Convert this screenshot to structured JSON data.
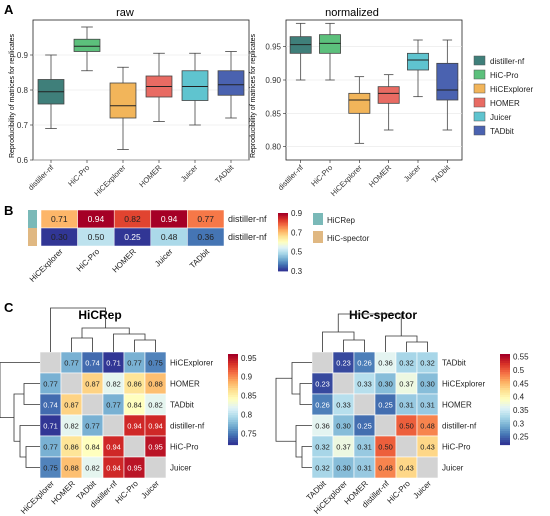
{
  "panel_labels": {
    "a": "A",
    "b": "B",
    "c": "C"
  },
  "chart_data": [
    {
      "type": "boxplot",
      "title": "raw",
      "ylabel": "Reproducibility of matrices for replicates",
      "ylim": [
        0.6,
        1.0
      ],
      "yticks": [
        0.6,
        0.7,
        0.8,
        0.9
      ],
      "tick_labels": [
        "0.6",
        "0.7",
        "0.8",
        "0.9"
      ],
      "categories": [
        "distiller-nf",
        "HiC-Pro",
        "HiCExplorer",
        "HOMER",
        "Juicer",
        "TADbit"
      ],
      "boxes": [
        {
          "category": "distiller-nf",
          "min": 0.69,
          "q1": 0.76,
          "median": 0.795,
          "q3": 0.83,
          "max": 0.9
        },
        {
          "category": "HiC-Pro",
          "min": 0.855,
          "q1": 0.91,
          "median": 0.925,
          "q3": 0.945,
          "max": 0.98
        },
        {
          "category": "HiCExplorer",
          "min": 0.63,
          "q1": 0.72,
          "median": 0.755,
          "q3": 0.82,
          "max": 0.865
        },
        {
          "category": "HOMER",
          "min": 0.71,
          "q1": 0.78,
          "median": 0.81,
          "q3": 0.84,
          "max": 0.905
        },
        {
          "category": "Juicer",
          "min": 0.7,
          "q1": 0.77,
          "median": 0.81,
          "q3": 0.855,
          "max": 0.905
        },
        {
          "category": "TADbit",
          "min": 0.72,
          "q1": 0.785,
          "median": 0.815,
          "q3": 0.855,
          "max": 0.91
        }
      ]
    },
    {
      "type": "boxplot",
      "title": "normalized",
      "ylabel": "Reproducibility of matrices for replicates",
      "ylim": [
        0.78,
        0.99
      ],
      "yticks": [
        0.8,
        0.85,
        0.9,
        0.95
      ],
      "tick_labels": [
        "0.80",
        "0.85",
        "0.90",
        "0.95"
      ],
      "categories": [
        "distiller-nf",
        "HiC-Pro",
        "HiCExplorer",
        "HOMER",
        "Juicer",
        "TADbit"
      ],
      "boxes": [
        {
          "category": "distiller-nf",
          "min": 0.9,
          "q1": 0.94,
          "median": 0.953,
          "q3": 0.965,
          "max": 0.985
        },
        {
          "category": "HiC-Pro",
          "min": 0.9,
          "q1": 0.94,
          "median": 0.955,
          "q3": 0.968,
          "max": 0.985
        },
        {
          "category": "HiCExplorer",
          "min": 0.805,
          "q1": 0.85,
          "median": 0.87,
          "q3": 0.88,
          "max": 0.905
        },
        {
          "category": "HOMER",
          "min": 0.825,
          "q1": 0.865,
          "median": 0.88,
          "q3": 0.89,
          "max": 0.908
        },
        {
          "category": "Juicer",
          "min": 0.875,
          "q1": 0.915,
          "median": 0.93,
          "q3": 0.94,
          "max": 0.96
        },
        {
          "category": "TADbit",
          "min": 0.825,
          "q1": 0.87,
          "median": 0.885,
          "q3": 0.925,
          "max": 0.96
        }
      ]
    },
    {
      "type": "heatmap",
      "columns": [
        "HiCExplorer",
        "HiC-Pro",
        "HOMER",
        "Juicer",
        "TADbit"
      ],
      "row_labels": [
        "distiller-nf",
        "distiller-nf"
      ],
      "row_annotations": [
        "HiCRep",
        "HiC-spector"
      ],
      "values": [
        [
          0.71,
          0.94,
          0.82,
          0.94,
          0.77
        ],
        [
          0.3,
          0.5,
          0.25,
          0.48,
          0.36
        ]
      ],
      "value_labels": [
        [
          "0.71",
          "0.94",
          "0.82",
          "0.94",
          "0.77"
        ],
        [
          "0.30",
          "0.50",
          "0.25",
          "0.48",
          "0.36"
        ]
      ],
      "colorbar": {
        "min": 0.3,
        "max": 0.9,
        "ticks": [
          "0.9",
          "0.7",
          "0.5",
          "0.3"
        ],
        "tick_values": [
          0.9,
          0.7,
          0.5,
          0.3
        ]
      },
      "legend": [
        "HiCRep",
        "HiC-spector"
      ]
    },
    {
      "type": "heatmap",
      "title": "HiCRep",
      "labels": [
        "HiCExplorer",
        "HOMER",
        "TADbit",
        "distiller-nf",
        "HiC-Pro",
        "Juicer"
      ],
      "values": [
        [
          null,
          0.77,
          0.74,
          0.71,
          0.77,
          0.75
        ],
        [
          0.77,
          null,
          0.87,
          0.82,
          0.86,
          0.88
        ],
        [
          0.74,
          0.87,
          null,
          0.77,
          0.84,
          0.82
        ],
        [
          0.71,
          0.82,
          0.77,
          null,
          0.94,
          0.94
        ],
        [
          0.77,
          0.86,
          0.84,
          0.94,
          null,
          0.95
        ],
        [
          0.75,
          0.88,
          0.82,
          0.94,
          0.95,
          null
        ]
      ],
      "value_labels": [
        [
          "",
          "0.77",
          "0.74",
          "0.71",
          "0.77",
          "0.75"
        ],
        [
          "0.77",
          "",
          "0.87",
          "0.82",
          "0.86",
          "0.88"
        ],
        [
          "0.74",
          "0.87",
          "",
          "0.77",
          "0.84",
          "0.82"
        ],
        [
          "0.71",
          "0.82",
          "0.77",
          "",
          "0.94",
          "0.94"
        ],
        [
          "0.77",
          "0.86",
          "0.84",
          "0.94",
          "",
          "0.95"
        ],
        [
          "0.75",
          "0.88",
          "0.82",
          "0.94",
          "0.95",
          ""
        ]
      ],
      "colorbar": {
        "min": 0.72,
        "max": 0.96,
        "ticks": [
          "0.95",
          "0.9",
          "0.85",
          "0.8",
          "0.75"
        ],
        "tick_values": [
          0.95,
          0.9,
          0.85,
          0.8,
          0.75
        ]
      }
    },
    {
      "type": "heatmap",
      "title": "HiC-spector",
      "labels": [
        "TADbit",
        "HiCExplorer",
        "HOMER",
        "distiller-nf",
        "HiC-Pro",
        "Juicer"
      ],
      "values": [
        [
          null,
          0.23,
          0.26,
          0.36,
          0.32,
          0.32
        ],
        [
          0.23,
          null,
          0.33,
          0.3,
          0.37,
          0.3
        ],
        [
          0.26,
          0.33,
          null,
          0.25,
          0.31,
          0.31
        ],
        [
          0.36,
          0.3,
          0.25,
          null,
          0.5,
          0.48
        ],
        [
          0.32,
          0.37,
          0.31,
          0.5,
          null,
          0.43
        ],
        [
          0.32,
          0.3,
          0.31,
          0.48,
          0.43,
          null
        ]
      ],
      "value_labels": [
        [
          "",
          "0.23",
          "0.26",
          "0.36",
          "0.32",
          "0.32"
        ],
        [
          "0.23",
          "",
          "0.33",
          "0.30",
          "0.37",
          "0.30"
        ],
        [
          "0.26",
          "0.33",
          "",
          "0.25",
          "0.31",
          "0.31"
        ],
        [
          "0.36",
          "0.30",
          "0.25",
          "",
          "0.50",
          "0.48"
        ],
        [
          "0.32",
          "0.37",
          "0.31",
          "0.50",
          "",
          "0.43"
        ],
        [
          "0.32",
          "0.30",
          "0.31",
          "0.48",
          "0.43",
          ""
        ]
      ],
      "colorbar": {
        "min": 0.22,
        "max": 0.56,
        "ticks": [
          "0.55",
          "0.5",
          "0.45",
          "0.4",
          "0.35",
          "0.3",
          "0.25"
        ],
        "tick_values": [
          0.55,
          0.5,
          0.45,
          0.4,
          0.35,
          0.3,
          0.25
        ]
      }
    }
  ],
  "box_legend": [
    {
      "name": "distiller-nf",
      "color": "#3f7f7a"
    },
    {
      "name": "HiC-Pro",
      "color": "#5cc07c"
    },
    {
      "name": "HiCExplorer",
      "color": "#f2b55a"
    },
    {
      "name": "HOMER",
      "color": "#e86b63"
    },
    {
      "name": "Juicer",
      "color": "#5fc4cf"
    },
    {
      "name": "TADbit",
      "color": "#4a62b0"
    }
  ],
  "colors": {
    "diverging": [
      "#313695",
      "#4575b4",
      "#74add1",
      "#abd9e9",
      "#e0f3f8",
      "#ffffbf",
      "#fee090",
      "#fdae61",
      "#f46d43",
      "#d73027",
      "#a50026"
    ],
    "hicrep_annot": "#7ab9b8",
    "spector_annot": "#e0b882",
    "gridline": "#e6e6e6",
    "diag": "#d3d3d3"
  }
}
